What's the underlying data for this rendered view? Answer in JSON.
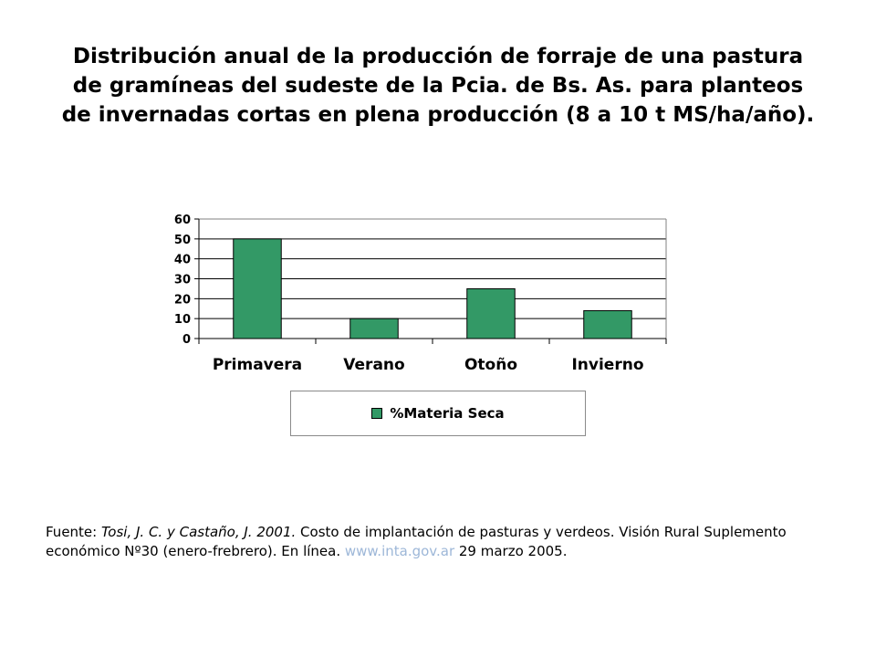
{
  "title": "Distribución anual de la producción de forraje de una pastura de gramíneas del sudeste de la Pcia. de Bs. As. para planteos de invernadas cortas en plena producción (8 a 10 t MS/ha/año).",
  "chart_data": {
    "type": "bar",
    "categories": [
      "Primavera",
      "Verano",
      "Otoño",
      "Invierno"
    ],
    "series": [
      {
        "name": "%Materia Seca",
        "values": [
          50,
          10,
          25,
          14
        ]
      }
    ],
    "xlabel": "",
    "ylabel": "",
    "ylim": [
      0,
      60
    ],
    "yticks": [
      0,
      10,
      20,
      30,
      40,
      50,
      60
    ],
    "grid": true,
    "legend": "bottom",
    "bar_color": "#339966"
  },
  "source": {
    "prefix": "Fuente: ",
    "authors": "Tosi, J. C. y Castaño, J. 2001.",
    "text": " Costo de implantación de pasturas y verdeos. Visión Rural Suplemento económico Nº30 (enero-frebrero). En línea. ",
    "link": "www.inta.gov.ar",
    "suffix": "  29 marzo 2005."
  }
}
